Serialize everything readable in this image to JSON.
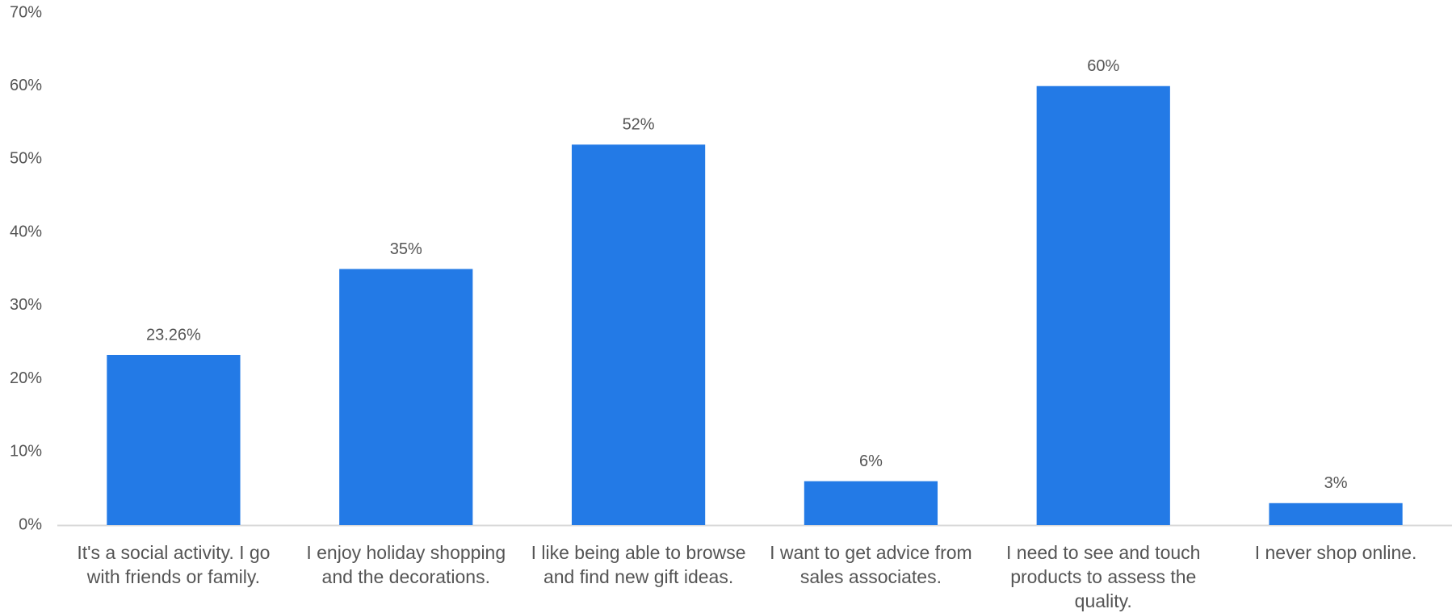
{
  "chart_data": {
    "type": "bar",
    "categories": [
      "It's a social activity. I go with friends or family.",
      "I enjoy holiday shopping and the decorations.",
      "I like being able to browse and find new gift ideas.",
      "I want to get advice from sales associates.",
      "I need to see and touch products to assess the quality.",
      "I never shop online."
    ],
    "values": [
      23.26,
      35,
      52,
      6,
      60,
      3
    ],
    "value_labels": [
      "23.26%",
      "35%",
      "52%",
      "6%",
      "60%",
      "3%"
    ],
    "color": "#237ae6",
    "ylim": [
      0,
      70
    ],
    "yticks": [
      {
        "value": 0,
        "label": "0%"
      },
      {
        "value": 10,
        "label": "10%"
      },
      {
        "value": 20,
        "label": "20%"
      },
      {
        "value": 30,
        "label": "30%"
      },
      {
        "value": 40,
        "label": "40%"
      },
      {
        "value": 50,
        "label": "50%"
      },
      {
        "value": 60,
        "label": "60%"
      },
      {
        "value": 70,
        "label": "70%"
      }
    ],
    "grid": false
  }
}
